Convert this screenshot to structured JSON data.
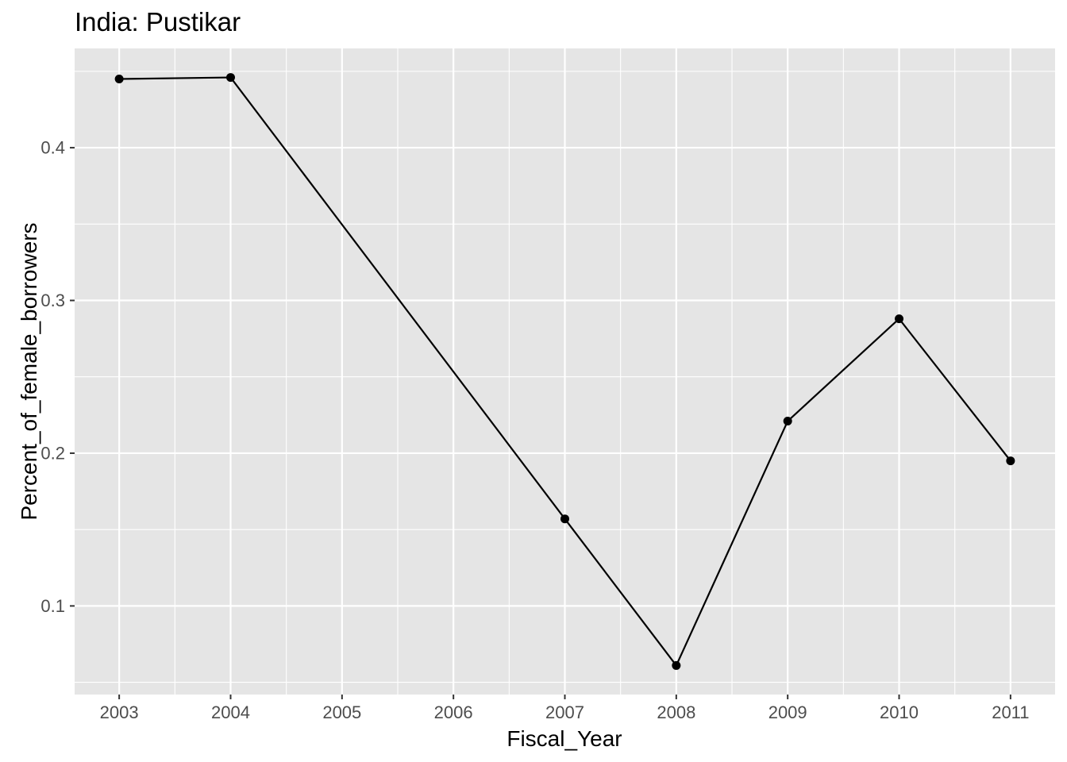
{
  "chart_data": {
    "type": "line",
    "title": "India:  Pustikar",
    "xlabel": "Fiscal_Year",
    "ylabel": "Percent_of_female_borrowers",
    "x": [
      2003,
      2004,
      2007,
      2008,
      2009,
      2010,
      2011
    ],
    "series": [
      {
        "values": [
          0.445,
          0.446,
          0.157,
          0.061,
          0.221,
          0.288,
          0.195
        ]
      }
    ],
    "x_ticks": [
      "2003",
      "2004",
      "2005",
      "2006",
      "2007",
      "2008",
      "2009",
      "2010",
      "2011"
    ],
    "y_ticks": [
      "0.1",
      "0.2",
      "0.3",
      "0.4"
    ],
    "xlim": [
      2002.6,
      2011.4
    ],
    "ylim": [
      0.042,
      0.465
    ],
    "grid": true,
    "legend": "none",
    "colors": {
      "panel_background": "#e5e5e5",
      "grid": "#ffffff",
      "line": "#000000",
      "points": "#000000",
      "tick_label": "#4d4d4d"
    }
  }
}
